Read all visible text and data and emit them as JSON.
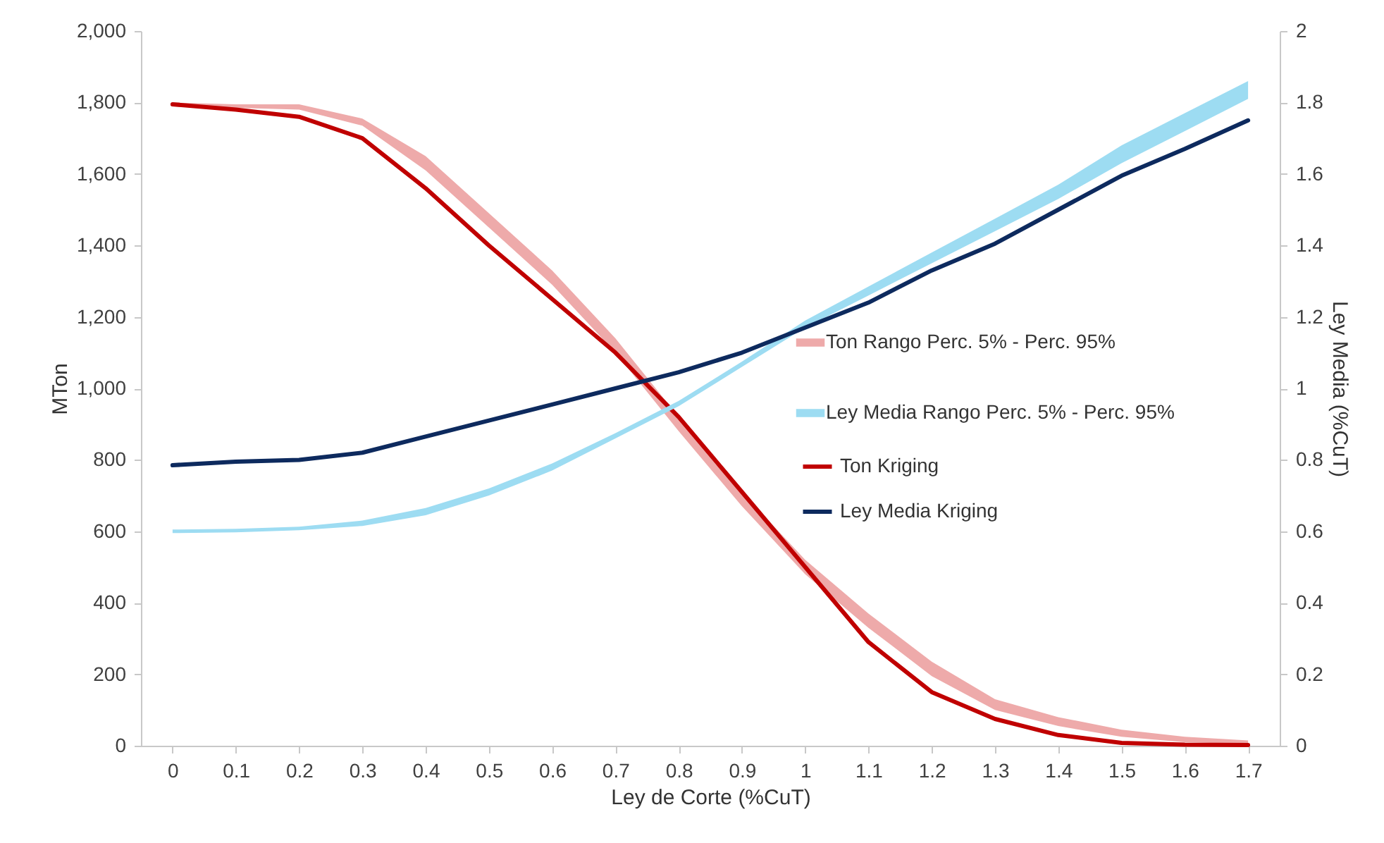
{
  "chart_data": {
    "type": "line",
    "xlabel": "Ley de Corte (%CuT)",
    "ylabel": "MTon",
    "y2label": "Ley Media (%CuT)",
    "categories": [
      "0",
      "0.1",
      "0.2",
      "0.3",
      "0.4",
      "0.5",
      "0.6",
      "0.7",
      "0.8",
      "0.9",
      "1",
      "1.1",
      "1.2",
      "1.3",
      "1.4",
      "1.5",
      "1.6",
      "1.7"
    ],
    "ylim": [
      0,
      2000
    ],
    "yticks": [
      0,
      200,
      400,
      600,
      800,
      {
        "value": 1000,
        "label": "1,000"
      },
      {
        "value": 1200,
        "label": "1,200"
      },
      {
        "value": 1400,
        "label": "1,400"
      },
      {
        "value": 1600,
        "label": "1,600"
      },
      {
        "value": 1800,
        "label": "1,800"
      },
      {
        "value": 2000,
        "label": "2,000"
      }
    ],
    "y2lim": [
      0,
      2
    ],
    "y2ticks": [
      0,
      0.2,
      0.4,
      0.6,
      0.8,
      1,
      1.2,
      1.4,
      1.6,
      1.8,
      2
    ],
    "grid": false,
    "legend": "right",
    "series": [
      {
        "name": "Ton Rango Perc. 5% - Perc. 95%",
        "type": "area",
        "color": "#eeaaaa",
        "values": [
          null,
          null,
          null,
          null,
          null,
          null,
          null,
          null,
          null,
          null,
          null,
          null,
          null,
          null,
          null,
          null,
          null,
          null
        ],
        "lower": [
          1790,
          1785,
          1780,
          1735,
          1610,
          1450,
          1290,
          1100,
          880,
          670,
          480,
          330,
          195,
          100,
          55,
          25,
          10,
          5
        ],
        "upper": [
          1800,
          1795,
          1795,
          1755,
          1650,
          1490,
          1330,
          1140,
          920,
          710,
          520,
          370,
          235,
          130,
          80,
          45,
          25,
          15
        ]
      },
      {
        "name": "Ley Media Rango Perc. 5% - Perc. 95%",
        "type": "area",
        "axis": "y2",
        "color": "#9ddcf2",
        "values": [
          null,
          null,
          null,
          null,
          null,
          null,
          null,
          null,
          null,
          null,
          null,
          null,
          null,
          null,
          null,
          null,
          null,
          null
        ],
        "lower": [
          0.595,
          0.597,
          0.603,
          0.615,
          0.645,
          0.7,
          0.77,
          0.86,
          0.95,
          1.06,
          1.17,
          1.26,
          1.35,
          1.44,
          1.53,
          1.63,
          1.72,
          1.81
        ],
        "upper": [
          0.605,
          0.607,
          0.613,
          0.63,
          0.665,
          0.72,
          0.79,
          0.875,
          0.965,
          1.075,
          1.19,
          1.285,
          1.38,
          1.475,
          1.57,
          1.68,
          1.77,
          1.86
        ]
      },
      {
        "name": "Ton Kriging",
        "color": "#c00000",
        "values": [
          1795,
          1780,
          1760,
          1700,
          1560,
          1400,
          1250,
          1100,
          920,
          710,
          500,
          290,
          150,
          75,
          30,
          8,
          3,
          2
        ]
      },
      {
        "name": "Ley Media Kriging",
        "axis": "y2",
        "color": "#0d2a5e",
        "values": [
          0.785,
          0.795,
          0.8,
          0.82,
          0.865,
          0.91,
          0.955,
          1,
          1.045,
          1.1,
          1.17,
          1.24,
          1.33,
          1.405,
          1.5,
          1.595,
          1.67,
          1.75
        ]
      }
    ]
  }
}
